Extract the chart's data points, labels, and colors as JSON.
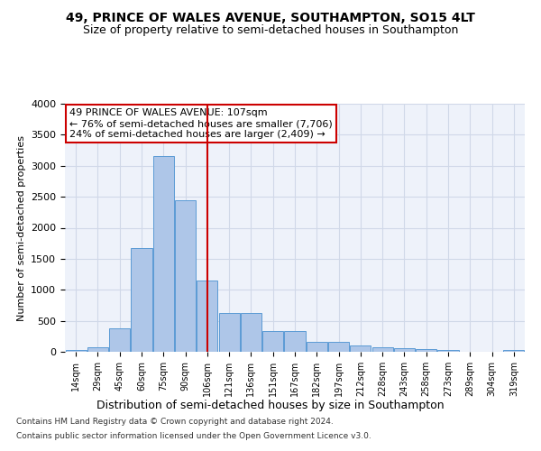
{
  "title": "49, PRINCE OF WALES AVENUE, SOUTHAMPTON, SO15 4LT",
  "subtitle": "Size of property relative to semi-detached houses in Southampton",
  "xlabel": "Distribution of semi-detached houses by size in Southampton",
  "ylabel": "Number of semi-detached properties",
  "footnote1": "Contains HM Land Registry data © Crown copyright and database right 2024.",
  "footnote2": "Contains public sector information licensed under the Open Government Licence v3.0.",
  "bin_labels": [
    "14sqm",
    "29sqm",
    "45sqm",
    "60sqm",
    "75sqm",
    "90sqm",
    "106sqm",
    "121sqm",
    "136sqm",
    "151sqm",
    "167sqm",
    "182sqm",
    "197sqm",
    "212sqm",
    "228sqm",
    "243sqm",
    "258sqm",
    "273sqm",
    "289sqm",
    "304sqm",
    "319sqm"
  ],
  "bar_values": [
    30,
    75,
    380,
    1670,
    3150,
    2450,
    1150,
    630,
    630,
    330,
    330,
    160,
    155,
    100,
    75,
    60,
    45,
    30,
    5,
    5,
    30
  ],
  "property_bin_index": 6,
  "bar_color": "#aec6e8",
  "bar_edge_color": "#5b9bd5",
  "vline_color": "#cc0000",
  "annotation_box_color": "#cc0000",
  "grid_color": "#d0d8e8",
  "background_color": "#eef2fa",
  "annotation_text_line1": "49 PRINCE OF WALES AVENUE: 107sqm",
  "annotation_text_line2": "← 76% of semi-detached houses are smaller (7,706)",
  "annotation_text_line3": "24% of semi-detached houses are larger (2,409) →",
  "ylim": [
    0,
    4000
  ],
  "yticks": [
    0,
    500,
    1000,
    1500,
    2000,
    2500,
    3000,
    3500,
    4000
  ],
  "title_fontsize": 10,
  "subtitle_fontsize": 9,
  "ylabel_fontsize": 8,
  "xlabel_fontsize": 9,
  "footnote_fontsize": 6.5,
  "annotation_fontsize": 8
}
